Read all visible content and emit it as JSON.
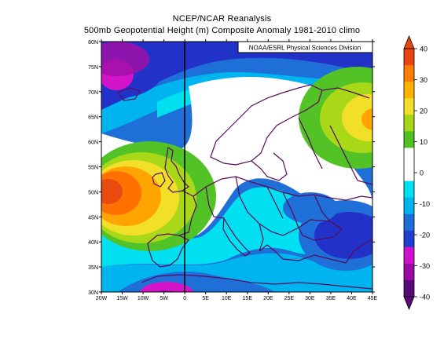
{
  "header": {
    "title": "NCEP/NCAR Reanalysis",
    "subtitle": "500mb Geopotential Height (m) Composite Anomaly 1981-2010 climo"
  },
  "credit": "NOAA/ESRL Physical Sciences Division",
  "map": {
    "lat_labels": [
      "80N",
      "75N",
      "70N",
      "65N",
      "60N",
      "55N",
      "50N",
      "45N",
      "40N",
      "35N",
      "30N"
    ],
    "lon_labels": [
      "20W",
      "15W",
      "10W",
      "5W",
      "0",
      "5E",
      "10E",
      "15E",
      "20E",
      "25E",
      "30E",
      "35E",
      "40E",
      "45E"
    ],
    "lat_range": [
      30,
      80
    ],
    "lon_range": [
      -20,
      45
    ]
  },
  "colorbar": {
    "ticks": [
      "40",
      "30",
      "20",
      "10",
      "0",
      "-10",
      "-20",
      "-30",
      "-40"
    ],
    "colors": [
      "#e8460f",
      "#ff7d00",
      "#ffb300",
      "#f2df2a",
      "#a6d418",
      "#4fc123",
      "#ffffff",
      "#ffffff",
      "#00e0f0",
      "#00b4f0",
      "#1e6fd8",
      "#1e3fd0",
      "#d012cc",
      "#9a0aa2",
      "#5a0a78"
    ]
  },
  "palette": {
    "deep_purple": "#5a0a78",
    "purple": "#a010a8",
    "magenta": "#d414c8",
    "dark_blue": "#2232c8",
    "blue": "#1e6fd8",
    "light_blue": "#00b4f0",
    "cyan": "#00e0f0",
    "white": "#ffffff",
    "green": "#52c226",
    "lime": "#a8d818",
    "yellow": "#f2df2a",
    "orange": "#ffa400",
    "dark_orange": "#ff7000",
    "red_orange": "#e84a10",
    "coastline": "#5a0a5a"
  }
}
